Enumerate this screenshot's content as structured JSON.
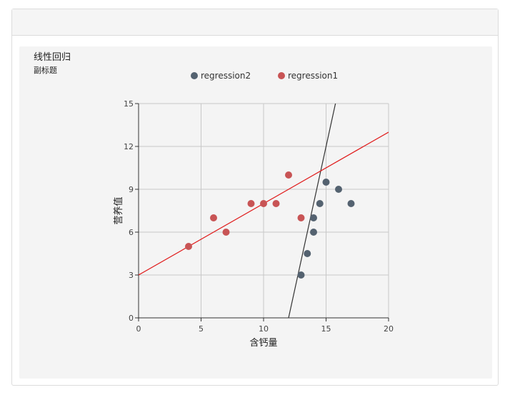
{
  "chart_data": {
    "type": "scatter",
    "title": "线性回归",
    "subtitle": "副标题",
    "xlabel": "含钙量",
    "ylabel": "营养值",
    "xlim": [
      0,
      20
    ],
    "ylim": [
      0,
      15
    ],
    "xticks": [
      0,
      5,
      10,
      15,
      20
    ],
    "yticks": [
      0,
      3,
      6,
      9,
      12,
      15
    ],
    "grid": true,
    "legend_position": "top-center",
    "series": [
      {
        "name": "regression2",
        "color": "#546270",
        "points": [
          [
            13,
            3
          ],
          [
            13.5,
            4.5
          ],
          [
            14,
            6
          ],
          [
            14,
            7
          ],
          [
            14.5,
            8
          ],
          [
            15,
            9.5
          ],
          [
            16,
            9
          ],
          [
            17,
            8
          ]
        ],
        "line": [
          [
            12,
            0
          ],
          [
            17,
            20
          ]
        ],
        "line_color": "#333333"
      },
      {
        "name": "regression1",
        "color": "#c85455",
        "points": [
          [
            4,
            5
          ],
          [
            6,
            7
          ],
          [
            7,
            6
          ],
          [
            9,
            8
          ],
          [
            10,
            8
          ],
          [
            11,
            8
          ],
          [
            12,
            10
          ],
          [
            13,
            7
          ]
        ],
        "line": [
          [
            0,
            3
          ],
          [
            20,
            13
          ]
        ],
        "line_color": "#e01a1a"
      }
    ]
  }
}
